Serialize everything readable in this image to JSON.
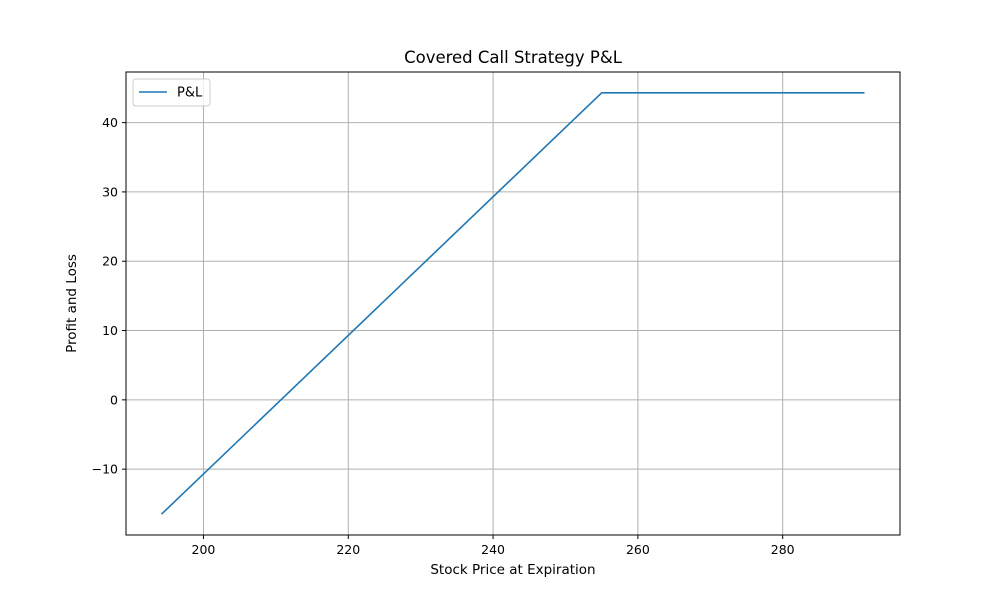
{
  "chart_data": {
    "type": "line",
    "title": "Covered Call Strategy P&L",
    "xlabel": "Stock Price at Expiration",
    "ylabel": "Profit and Loss",
    "xlim": [
      189.3,
      296.2
    ],
    "ylim": [
      -19.5,
      47.3
    ],
    "xticks": [
      200,
      220,
      240,
      260,
      280
    ],
    "yticks": [
      -10,
      0,
      10,
      20,
      30,
      40
    ],
    "grid": true,
    "legend_position": "top-left",
    "series": [
      {
        "name": "P&L",
        "color": "#1f77b4",
        "x": [
          194.2,
          255.0,
          291.3
        ],
        "y": [
          -16.5,
          44.3,
          44.3
        ]
      }
    ]
  }
}
